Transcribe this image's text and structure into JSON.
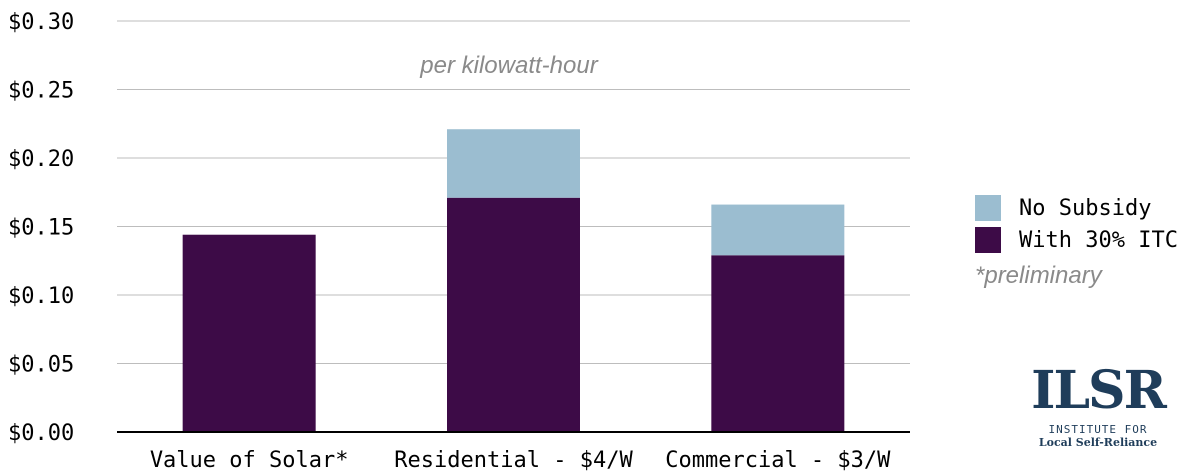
{
  "chart_data": {
    "type": "bar",
    "stacked": true,
    "categories": [
      "Value of Solar*",
      "Residential - $4/W",
      "Commercial - $3/W"
    ],
    "series": [
      {
        "name": "With 30% ITC",
        "values": [
          0.144,
          0.171,
          0.129
        ],
        "color": "#3d0b47"
      },
      {
        "name": "No Subsidy",
        "values": [
          0,
          0.05,
          0.037
        ],
        "color": "#9bbdd0"
      }
    ],
    "subtitle": "per kilowatt-hour",
    "ylim": [
      0,
      0.3
    ],
    "yticks": [
      "$0.00",
      "$0.05",
      "$0.10",
      "$0.15",
      "$0.20",
      "$0.25",
      "$0.30"
    ],
    "grid": true,
    "legend_position": "right",
    "footnote": "*preliminary"
  },
  "legend": {
    "no_subsidy": "No Subsidy",
    "with_itc": "With 30% ITC"
  },
  "logo": {
    "mark": "ILSR",
    "line1": "INSTITUTE FOR",
    "line2": "Local Self-Reliance"
  }
}
